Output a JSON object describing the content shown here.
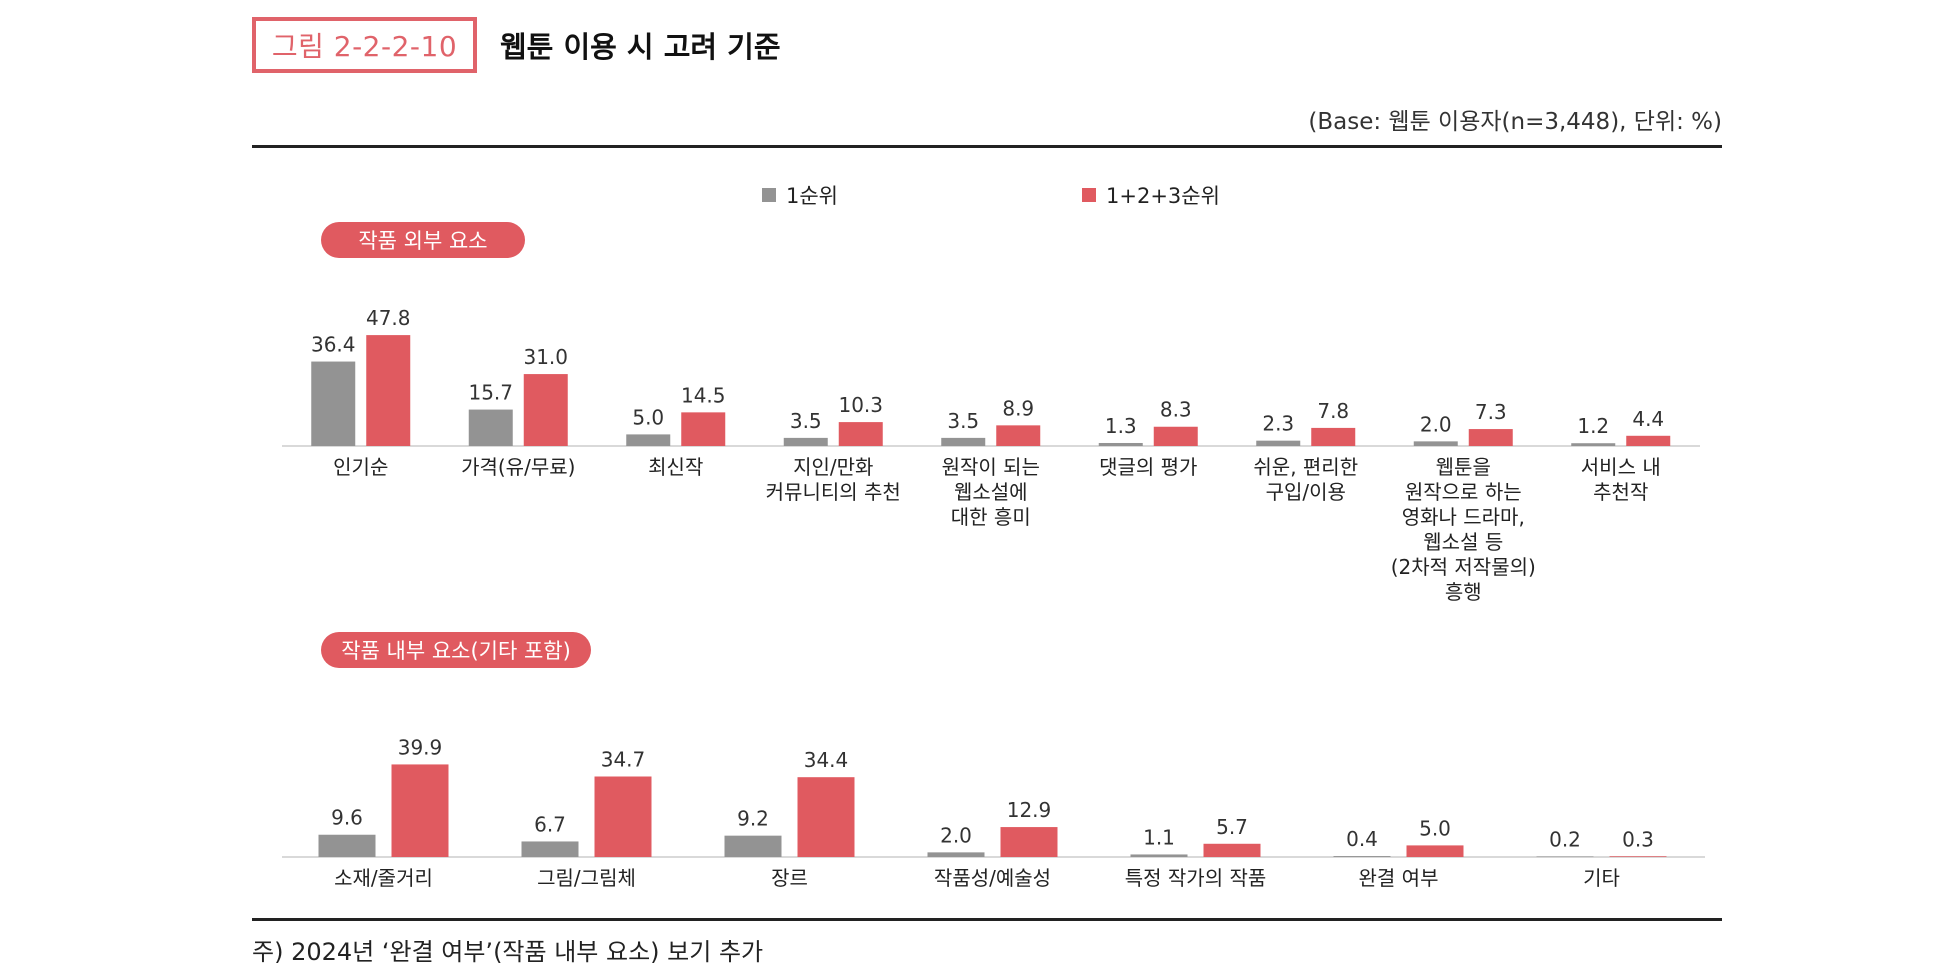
{
  "header": {
    "figure_tag": "그림 2-2-2-10",
    "title": "웹툰 이용 시 고려 기준",
    "base_note": "(Base: 웹툰 이용자(n=3,448), 단위: %)"
  },
  "footnote": "주) 2024년 ‘완결 여부’(작품 내부 요소) 보기 추가",
  "colors": {
    "rank1": "#939393",
    "rank123": "#e05a60",
    "accent": "#e0636a"
  },
  "chart_data": [
    {
      "type": "bar",
      "title": "작품 외부 요소",
      "legend": [
        "1순위",
        "1+2+3순위"
      ],
      "legend_position": "top-center",
      "grid": false,
      "ylim": [
        0,
        50
      ],
      "categories": [
        [
          "인기순"
        ],
        [
          "가격(유/무료)"
        ],
        [
          "최신작"
        ],
        [
          "지인/만화",
          "커뮤니티의 추천"
        ],
        [
          "원작이 되는",
          "웹소설에",
          "대한 흥미"
        ],
        [
          "댓글의 평가"
        ],
        [
          "쉬운, 편리한",
          "구입/이용"
        ],
        [
          "웹툰을",
          "원작으로 하는",
          "영화나 드라마,",
          "웹소설 등",
          "(2차적 저작물의)",
          "흥행"
        ],
        [
          "서비스 내",
          "추천작"
        ]
      ],
      "series": [
        {
          "name": "1순위",
          "values": [
            36.4,
            15.7,
            5.0,
            3.5,
            3.5,
            1.3,
            2.3,
            2.0,
            1.2
          ]
        },
        {
          "name": "1+2+3순위",
          "values": [
            47.8,
            31.0,
            14.5,
            10.3,
            8.9,
            8.3,
            7.8,
            7.3,
            4.4
          ]
        }
      ]
    },
    {
      "type": "bar",
      "title": "작품 내부 요소(기타 포함)",
      "legend": [
        "1순위",
        "1+2+3순위"
      ],
      "grid": false,
      "ylim": [
        0,
        50
      ],
      "categories": [
        [
          "소재/줄거리"
        ],
        [
          "그림/그림체"
        ],
        [
          "장르"
        ],
        [
          "작품성/예술성"
        ],
        [
          "특정 작가의 작품"
        ],
        [
          "완결 여부"
        ],
        [
          "기타"
        ]
      ],
      "series": [
        {
          "name": "1순위",
          "values": [
            9.6,
            6.7,
            9.2,
            2.0,
            1.1,
            0.4,
            0.2
          ]
        },
        {
          "name": "1+2+3순위",
          "values": [
            39.9,
            34.7,
            34.4,
            12.9,
            5.7,
            5.0,
            0.3
          ]
        }
      ]
    }
  ]
}
